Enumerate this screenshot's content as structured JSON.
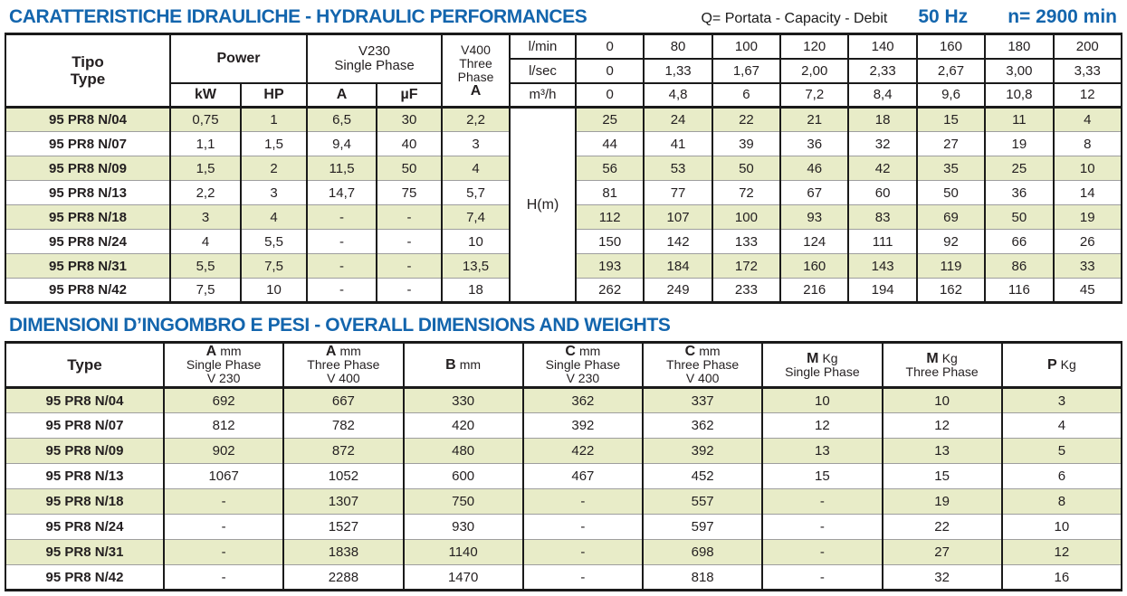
{
  "colors": {
    "accent_blue": "#1365ad",
    "row_green": "#e8ecc8"
  },
  "header1": {
    "title": "CARATTERISTICHE IDRAULICHE - HYDRAULIC PERFORMANCES",
    "legend": "Q= Portata - Capacity - Debit",
    "frequency": "50 Hz",
    "speed": "n= 2900 min"
  },
  "table1": {
    "type_it": "Tipo",
    "type_en": "Type",
    "power": "Power",
    "kw": "kW",
    "hp": "HP",
    "v230": "V230",
    "single_phase": "Single Phase",
    "amp": "A",
    "uf": "µF",
    "v400_l1": "V400",
    "v400_l2": "Three",
    "v400_l3": "Phase",
    "v400_amp": "A",
    "hm": "H(m)",
    "flow_rows": [
      {
        "unit": "l/min",
        "values": [
          "0",
          "80",
          "100",
          "120",
          "140",
          "160",
          "180",
          "200"
        ]
      },
      {
        "unit": "l/sec",
        "values": [
          "0",
          "1,33",
          "1,67",
          "2,00",
          "2,33",
          "2,67",
          "3,00",
          "3,33"
        ]
      },
      {
        "unit": "m³/h",
        "values": [
          "0",
          "4,8",
          "6",
          "7,2",
          "8,4",
          "9,6",
          "10,8",
          "12"
        ]
      }
    ],
    "rows": [
      {
        "type": "95 PR8 N/04",
        "kw": "0,75",
        "hp": "1",
        "a230": "6,5",
        "uf": "30",
        "a400": "2,2",
        "heads": [
          "25",
          "24",
          "22",
          "21",
          "18",
          "15",
          "11",
          "4"
        ]
      },
      {
        "type": "95 PR8 N/07",
        "kw": "1,1",
        "hp": "1,5",
        "a230": "9,4",
        "uf": "40",
        "a400": "3",
        "heads": [
          "44",
          "41",
          "39",
          "36",
          "32",
          "27",
          "19",
          "8"
        ]
      },
      {
        "type": "95 PR8 N/09",
        "kw": "1,5",
        "hp": "2",
        "a230": "11,5",
        "uf": "50",
        "a400": "4",
        "heads": [
          "56",
          "53",
          "50",
          "46",
          "42",
          "35",
          "25",
          "10"
        ]
      },
      {
        "type": "95 PR8 N/13",
        "kw": "2,2",
        "hp": "3",
        "a230": "14,7",
        "uf": "75",
        "a400": "5,7",
        "heads": [
          "81",
          "77",
          "72",
          "67",
          "60",
          "50",
          "36",
          "14"
        ]
      },
      {
        "type": "95 PR8 N/18",
        "kw": "3",
        "hp": "4",
        "a230": "-",
        "uf": "-",
        "a400": "7,4",
        "heads": [
          "112",
          "107",
          "100",
          "93",
          "83",
          "69",
          "50",
          "19"
        ]
      },
      {
        "type": "95 PR8 N/24",
        "kw": "4",
        "hp": "5,5",
        "a230": "-",
        "uf": "-",
        "a400": "10",
        "heads": [
          "150",
          "142",
          "133",
          "124",
          "111",
          "92",
          "66",
          "26"
        ]
      },
      {
        "type": "95 PR8 N/31",
        "kw": "5,5",
        "hp": "7,5",
        "a230": "-",
        "uf": "-",
        "a400": "13,5",
        "heads": [
          "193",
          "184",
          "172",
          "160",
          "143",
          "119",
          "86",
          "33"
        ]
      },
      {
        "type": "95 PR8 N/42",
        "kw": "7,5",
        "hp": "10",
        "a230": "-",
        "uf": "-",
        "a400": "18",
        "heads": [
          "262",
          "249",
          "233",
          "216",
          "194",
          "162",
          "116",
          "45"
        ]
      }
    ]
  },
  "header2": {
    "title": "DIMENSIONI D’INGOMBRO E PESI - OVERALL DIMENSIONS AND WEIGHTS"
  },
  "table2": {
    "type_label": "Type",
    "columns": [
      {
        "letter": "A",
        "unit": "mm",
        "line2": "Single Phase",
        "line3": "V 230"
      },
      {
        "letter": "A",
        "unit": "mm",
        "line2": "Three Phase",
        "line3": "V 400"
      },
      {
        "letter": "B",
        "unit": "mm",
        "line2": "",
        "line3": ""
      },
      {
        "letter": "C",
        "unit": "mm",
        "line2": "Single Phase",
        "line3": "V 230"
      },
      {
        "letter": "C",
        "unit": "mm",
        "line2": "Three Phase",
        "line3": "V 400"
      },
      {
        "letter": "M",
        "unit": "Kg",
        "line2": "Single Phase",
        "line3": ""
      },
      {
        "letter": "M",
        "unit": "Kg",
        "line2": "Three Phase",
        "line3": ""
      },
      {
        "letter": "P",
        "unit": "Kg",
        "line2": "",
        "line3": ""
      }
    ],
    "rows": [
      {
        "type": "95 PR8 N/04",
        "values": [
          "692",
          "667",
          "330",
          "362",
          "337",
          "10",
          "10",
          "3"
        ]
      },
      {
        "type": "95 PR8 N/07",
        "values": [
          "812",
          "782",
          "420",
          "392",
          "362",
          "12",
          "12",
          "4"
        ]
      },
      {
        "type": "95 PR8 N/09",
        "values": [
          "902",
          "872",
          "480",
          "422",
          "392",
          "13",
          "13",
          "5"
        ]
      },
      {
        "type": "95 PR8 N/13",
        "values": [
          "1067",
          "1052",
          "600",
          "467",
          "452",
          "15",
          "15",
          "6"
        ]
      },
      {
        "type": "95 PR8 N/18",
        "values": [
          "-",
          "1307",
          "750",
          "-",
          "557",
          "-",
          "19",
          "8"
        ]
      },
      {
        "type": "95 PR8 N/24",
        "values": [
          "-",
          "1527",
          "930",
          "-",
          "597",
          "-",
          "22",
          "10"
        ]
      },
      {
        "type": "95 PR8 N/31",
        "values": [
          "-",
          "1838",
          "1140",
          "-",
          "698",
          "-",
          "27",
          "12"
        ]
      },
      {
        "type": "95 PR8 N/42",
        "values": [
          "-",
          "2288",
          "1470",
          "-",
          "818",
          "-",
          "32",
          "16"
        ]
      }
    ]
  }
}
